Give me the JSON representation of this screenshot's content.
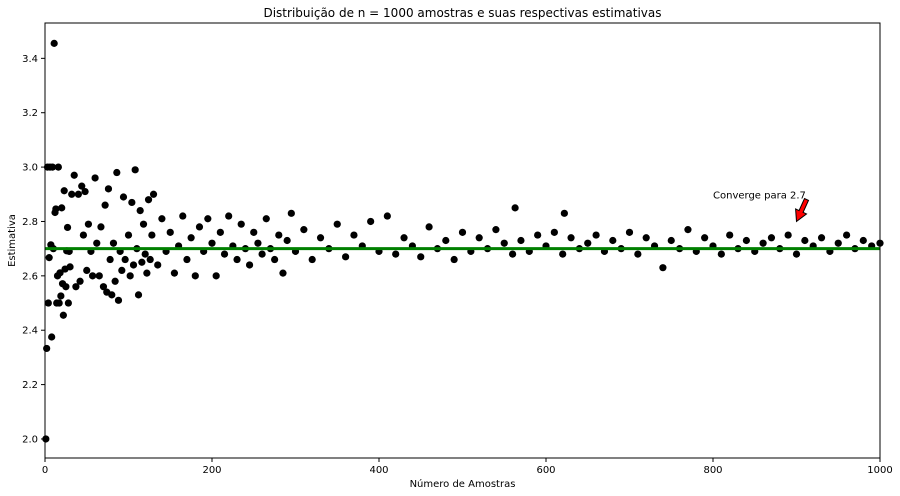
{
  "chart_data": {
    "type": "scatter",
    "title": "Distribuição de n = 1000 amostras e suas respectivas estimativas",
    "xlabel": "Número de Amostras",
    "ylabel": "Estimativa",
    "xlim": [
      0,
      1000
    ],
    "ylim": [
      1.93,
      3.53
    ],
    "xticks": [
      0,
      200,
      400,
      600,
      800,
      1000
    ],
    "yticks": [
      2.0,
      2.2,
      2.4,
      2.6,
      2.8,
      3.0,
      3.2,
      3.4
    ],
    "grid": false,
    "colors": {
      "points": "#000000",
      "reference_line": "#008000",
      "arrow": "#ff0000"
    },
    "reference_line": {
      "y": 2.7
    },
    "annotation": {
      "text": "Converge para 2.7",
      "text_at": [
        800,
        2.9
      ],
      "arrow_to": [
        900,
        2.8
      ]
    },
    "points": [
      [
        1,
        2.0
      ],
      [
        2,
        2.333
      ],
      [
        3,
        3.0
      ],
      [
        4,
        2.5
      ],
      [
        5,
        2.667
      ],
      [
        6,
        3.0
      ],
      [
        7,
        2.714
      ],
      [
        8,
        2.375
      ],
      [
        9,
        3.0
      ],
      [
        10,
        2.7
      ],
      [
        11,
        3.455
      ],
      [
        12,
        2.833
      ],
      [
        13,
        2.846
      ],
      [
        14,
        2.5
      ],
      [
        15,
        2.6
      ],
      [
        16,
        3.0
      ],
      [
        17,
        2.5
      ],
      [
        18,
        2.611
      ],
      [
        19,
        2.526
      ],
      [
        20,
        2.85
      ],
      [
        21,
        2.571
      ],
      [
        22,
        2.455
      ],
      [
        23,
        2.913
      ],
      [
        24,
        2.625
      ],
      [
        25,
        2.56
      ],
      [
        26,
        2.692
      ],
      [
        27,
        2.778
      ],
      [
        28,
        2.5
      ],
      [
        29,
        2.69
      ],
      [
        30,
        2.633
      ],
      [
        32,
        2.9
      ],
      [
        35,
        2.97
      ],
      [
        37,
        2.56
      ],
      [
        40,
        2.9
      ],
      [
        42,
        2.58
      ],
      [
        44,
        2.93
      ],
      [
        46,
        2.75
      ],
      [
        48,
        2.91
      ],
      [
        50,
        2.62
      ],
      [
        52,
        2.79
      ],
      [
        55,
        2.69
      ],
      [
        57,
        2.6
      ],
      [
        60,
        2.96
      ],
      [
        62,
        2.72
      ],
      [
        65,
        2.6
      ],
      [
        67,
        2.78
      ],
      [
        70,
        2.56
      ],
      [
        72,
        2.86
      ],
      [
        74,
        2.54
      ],
      [
        76,
        2.92
      ],
      [
        78,
        2.66
      ],
      [
        80,
        2.53
      ],
      [
        82,
        2.72
      ],
      [
        84,
        2.58
      ],
      [
        86,
        2.98
      ],
      [
        88,
        2.51
      ],
      [
        90,
        2.69
      ],
      [
        92,
        2.62
      ],
      [
        94,
        2.89
      ],
      [
        96,
        2.66
      ],
      [
        100,
        2.75
      ],
      [
        102,
        2.6
      ],
      [
        104,
        2.87
      ],
      [
        106,
        2.64
      ],
      [
        108,
        2.99
      ],
      [
        110,
        2.7
      ],
      [
        112,
        2.53
      ],
      [
        114,
        2.84
      ],
      [
        116,
        2.65
      ],
      [
        118,
        2.79
      ],
      [
        120,
        2.68
      ],
      [
        122,
        2.61
      ],
      [
        124,
        2.88
      ],
      [
        126,
        2.66
      ],
      [
        128,
        2.75
      ],
      [
        130,
        2.9
      ],
      [
        135,
        2.64
      ],
      [
        140,
        2.81
      ],
      [
        145,
        2.69
      ],
      [
        150,
        2.76
      ],
      [
        155,
        2.61
      ],
      [
        160,
        2.71
      ],
      [
        165,
        2.82
      ],
      [
        170,
        2.66
      ],
      [
        175,
        2.74
      ],
      [
        180,
        2.6
      ],
      [
        185,
        2.78
      ],
      [
        190,
        2.69
      ],
      [
        195,
        2.81
      ],
      [
        200,
        2.72
      ],
      [
        205,
        2.6
      ],
      [
        210,
        2.76
      ],
      [
        215,
        2.68
      ],
      [
        220,
        2.82
      ],
      [
        225,
        2.71
      ],
      [
        230,
        2.66
      ],
      [
        235,
        2.79
      ],
      [
        240,
        2.7
      ],
      [
        245,
        2.64
      ],
      [
        250,
        2.76
      ],
      [
        255,
        2.72
      ],
      [
        260,
        2.68
      ],
      [
        265,
        2.81
      ],
      [
        270,
        2.7
      ],
      [
        275,
        2.66
      ],
      [
        280,
        2.75
      ],
      [
        285,
        2.61
      ],
      [
        290,
        2.73
      ],
      [
        295,
        2.83
      ],
      [
        300,
        2.69
      ],
      [
        310,
        2.77
      ],
      [
        320,
        2.66
      ],
      [
        330,
        2.74
      ],
      [
        340,
        2.7
      ],
      [
        350,
        2.79
      ],
      [
        360,
        2.67
      ],
      [
        370,
        2.75
      ],
      [
        380,
        2.71
      ],
      [
        390,
        2.8
      ],
      [
        400,
        2.69
      ],
      [
        410,
        2.82
      ],
      [
        420,
        2.68
      ],
      [
        430,
        2.74
      ],
      [
        440,
        2.71
      ],
      [
        450,
        2.67
      ],
      [
        460,
        2.78
      ],
      [
        470,
        2.7
      ],
      [
        480,
        2.73
      ],
      [
        490,
        2.66
      ],
      [
        500,
        2.76
      ],
      [
        510,
        2.69
      ],
      [
        520,
        2.74
      ],
      [
        530,
        2.7
      ],
      [
        540,
        2.77
      ],
      [
        550,
        2.72
      ],
      [
        560,
        2.68
      ],
      [
        563,
        2.85
      ],
      [
        570,
        2.73
      ],
      [
        580,
        2.69
      ],
      [
        590,
        2.75
      ],
      [
        600,
        2.71
      ],
      [
        610,
        2.76
      ],
      [
        620,
        2.68
      ],
      [
        622,
        2.83
      ],
      [
        630,
        2.74
      ],
      [
        640,
        2.7
      ],
      [
        650,
        2.72
      ],
      [
        660,
        2.75
      ],
      [
        670,
        2.69
      ],
      [
        680,
        2.73
      ],
      [
        690,
        2.7
      ],
      [
        700,
        2.76
      ],
      [
        710,
        2.68
      ],
      [
        720,
        2.74
      ],
      [
        730,
        2.71
      ],
      [
        740,
        2.63
      ],
      [
        750,
        2.73
      ],
      [
        760,
        2.7
      ],
      [
        770,
        2.77
      ],
      [
        780,
        2.69
      ],
      [
        790,
        2.74
      ],
      [
        800,
        2.71
      ],
      [
        810,
        2.68
      ],
      [
        820,
        2.75
      ],
      [
        830,
        2.7
      ],
      [
        840,
        2.73
      ],
      [
        850,
        2.69
      ],
      [
        860,
        2.72
      ],
      [
        870,
        2.74
      ],
      [
        880,
        2.7
      ],
      [
        890,
        2.75
      ],
      [
        900,
        2.68
      ],
      [
        910,
        2.73
      ],
      [
        920,
        2.71
      ],
      [
        930,
        2.74
      ],
      [
        940,
        2.69
      ],
      [
        950,
        2.72
      ],
      [
        960,
        2.75
      ],
      [
        970,
        2.7
      ],
      [
        980,
        2.73
      ],
      [
        990,
        2.71
      ],
      [
        1000,
        2.72
      ]
    ]
  }
}
